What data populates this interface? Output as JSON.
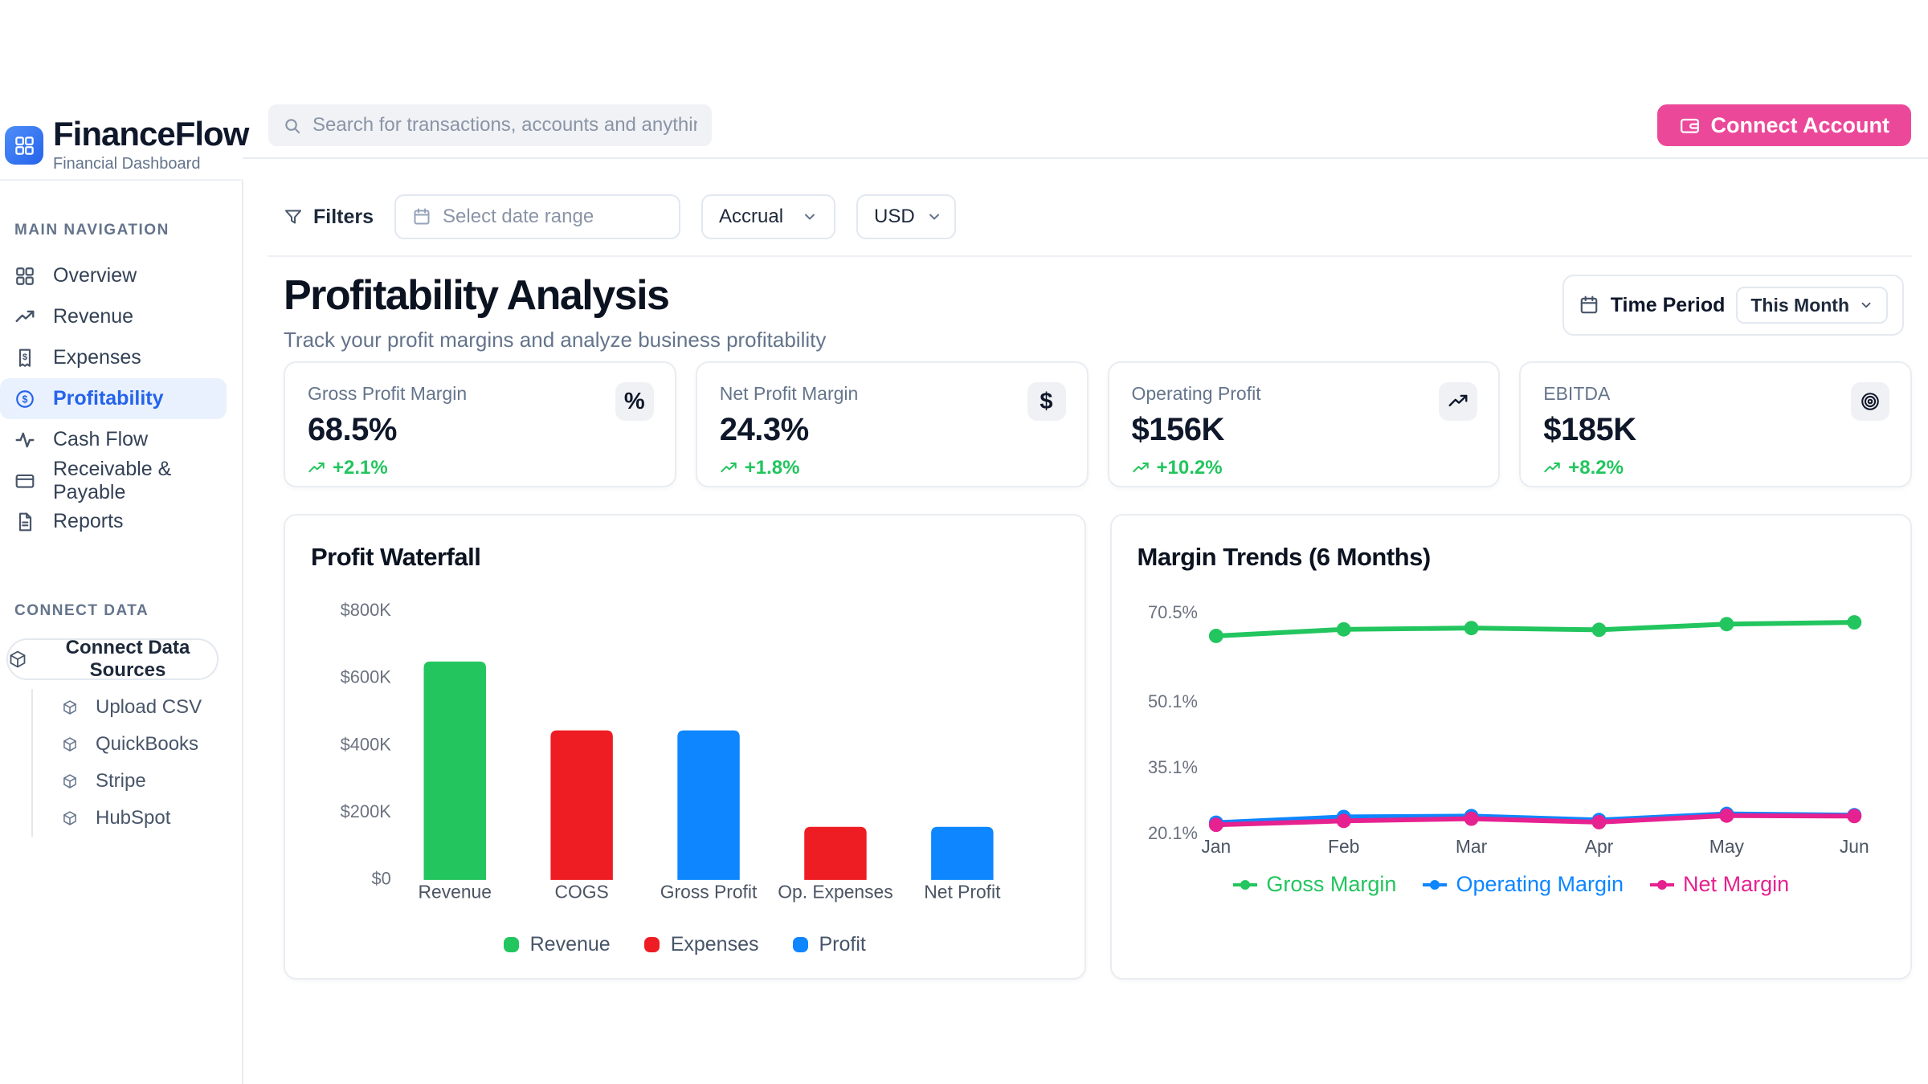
{
  "brand": {
    "name": "FinanceFlow",
    "tagline": "Financial Dashboard"
  },
  "topbar": {
    "search_placeholder": "Search for transactions, accounts and anything else financial",
    "connect_account": "Connect Account"
  },
  "sidebar": {
    "nav_header": "MAIN NAVIGATION",
    "items": [
      {
        "label": "Overview",
        "icon": "grid-icon",
        "active": false
      },
      {
        "label": "Revenue",
        "icon": "trending-up-icon",
        "active": false
      },
      {
        "label": "Expenses",
        "icon": "receipt-icon",
        "active": false
      },
      {
        "label": "Profitability",
        "icon": "dollar-circle-icon",
        "active": true
      },
      {
        "label": "Cash Flow",
        "icon": "activity-icon",
        "active": false
      },
      {
        "label": "Receivable & Payable",
        "icon": "credit-card-icon",
        "active": false
      },
      {
        "label": "Reports",
        "icon": "file-text-icon",
        "active": false
      }
    ],
    "connect_header": "CONNECT DATA",
    "connect_button": "Connect Data Sources",
    "connect_items": [
      {
        "label": "Upload CSV",
        "icon": "cube-icon"
      },
      {
        "label": "QuickBooks",
        "icon": "cube-icon"
      },
      {
        "label": "Stripe",
        "icon": "cube-icon"
      },
      {
        "label": "HubSpot",
        "icon": "cube-icon"
      }
    ]
  },
  "filters": {
    "label": "Filters",
    "date_placeholder": "Select date range",
    "accounting_basis": "Accrual",
    "currency": "USD"
  },
  "page": {
    "title": "Profitability Analysis",
    "subtitle": "Track your profit margins and analyze business profitability",
    "time_period_label": "Time Period",
    "time_period_value": "This Month"
  },
  "kpis": [
    {
      "label": "Gross Profit Margin",
      "value": "68.5%",
      "delta": "+2.1%",
      "icon": "percent-icon",
      "icon_glyph": "%"
    },
    {
      "label": "Net Profit Margin",
      "value": "24.3%",
      "delta": "+1.8%",
      "icon": "dollar-icon",
      "icon_glyph": "$"
    },
    {
      "label": "Operating Profit",
      "value": "$156K",
      "delta": "+10.2%",
      "icon": "trending-up-icon",
      "icon_glyph": ""
    },
    {
      "label": "EBITDA",
      "value": "$185K",
      "delta": "+8.2%",
      "icon": "target-icon",
      "icon_glyph": ""
    }
  ],
  "colors": {
    "accent_pink": "#EC4899",
    "primary_blue": "#2563EB",
    "positive_green": "#22c55e",
    "bar_green": "#22c55e",
    "bar_red": "#EE1D23",
    "bar_blue": "#0D86FF",
    "line_pink": "#E62190"
  },
  "chart_data": [
    {
      "type": "bar",
      "title": "Profit Waterfall",
      "categories": [
        "Revenue",
        "COGS",
        "Gross Profit",
        "Op. Expenses",
        "Net Profit"
      ],
      "values": [
        650,
        445,
        445,
        158,
        158
      ],
      "bar_colors": [
        "#22c55e",
        "#EE1D23",
        "#0D86FF",
        "#EE1D23",
        "#0D86FF"
      ],
      "unit": "K USD",
      "ylim": [
        0,
        800
      ],
      "grid": false,
      "yticks": [
        {
          "label": "$800K",
          "value": 800
        },
        {
          "label": "$600K",
          "value": 600
        },
        {
          "label": "$400K",
          "value": 400
        },
        {
          "label": "$200K",
          "value": 200
        },
        {
          "label": "$0",
          "value": 0
        }
      ],
      "legend_position": "bottom",
      "legend": [
        {
          "label": "Revenue",
          "color": "#22c55e"
        },
        {
          "label": "Expenses",
          "color": "#EE1D23"
        },
        {
          "label": "Profit",
          "color": "#0D86FF"
        }
      ]
    },
    {
      "type": "line",
      "title": "Margin Trends (6 Months)",
      "x": [
        "Jan",
        "Feb",
        "Mar",
        "Apr",
        "May",
        "Jun"
      ],
      "ylim": [
        20.1,
        70.5
      ],
      "grid": false,
      "yticks": [
        {
          "label": "70.5%",
          "value": 70.5
        },
        {
          "label": "50.1%",
          "value": 50.1
        },
        {
          "label": "35.1%",
          "value": 35.1
        },
        {
          "label": "20.1%",
          "value": 20.1
        }
      ],
      "legend_position": "bottom",
      "series": [
        {
          "name": "Gross Margin",
          "color": "#22c55e",
          "values": [
            65.4,
            66.9,
            67.2,
            66.8,
            68.1,
            68.5
          ]
        },
        {
          "name": "Operating Margin",
          "color": "#0D86FF",
          "values": [
            22.8,
            24.1,
            24.3,
            23.4,
            24.8,
            24.5
          ]
        },
        {
          "name": "Net Margin",
          "color": "#E62190",
          "values": [
            22.3,
            23.2,
            23.7,
            22.9,
            24.4,
            24.3
          ]
        }
      ]
    }
  ]
}
